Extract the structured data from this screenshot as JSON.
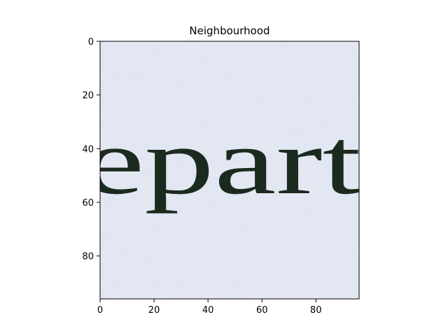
{
  "chart_data": {
    "type": "image",
    "title": "Neighbourhood",
    "xlabel": "",
    "ylabel": "",
    "xlim": [
      0,
      96
    ],
    "ylim": [
      96,
      0
    ],
    "x_ticks": [
      0,
      20,
      40,
      60,
      80
    ],
    "y_ticks": [
      0,
      20,
      40,
      60,
      80
    ],
    "grid": false,
    "image_content": {
      "depicted_text": "epart",
      "background_color": "#e2e7f3",
      "ink_color": "#1b2a1e"
    }
  }
}
